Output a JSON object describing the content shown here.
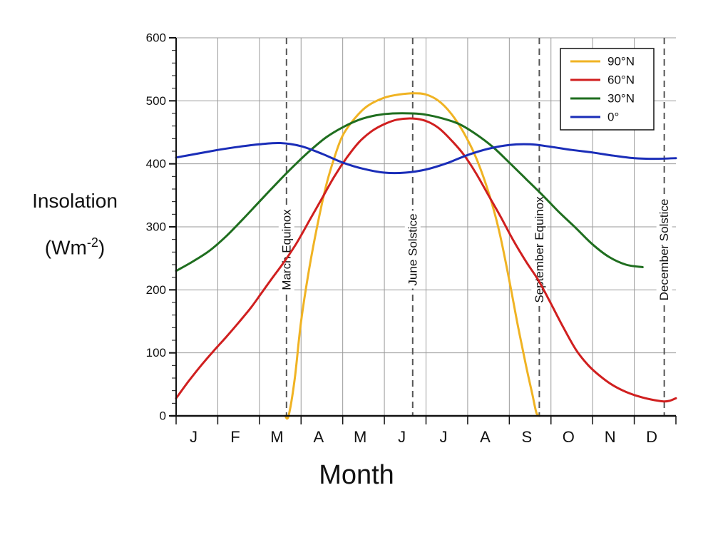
{
  "chart_data": {
    "type": "line",
    "ylabel_main": "Insolation",
    "ylabel_unit_prefix": "(Wm",
    "ylabel_unit_sup": "-2",
    "ylabel_unit_suffix": ")",
    "xlabel": "Month",
    "ylim": [
      0,
      600
    ],
    "yticks": [
      0,
      100,
      200,
      300,
      400,
      500,
      600
    ],
    "months": [
      "J",
      "F",
      "M",
      "A",
      "M",
      "J",
      "J",
      "A",
      "S",
      "O",
      "N",
      "D"
    ],
    "grid": true,
    "legend_position": "top-right",
    "events": [
      {
        "label": "March Equinox",
        "month": 2.65
      },
      {
        "label": "June Solstice",
        "month": 5.68
      },
      {
        "label": "September Equinox",
        "month": 8.72
      },
      {
        "label": "December Solstice",
        "month": 11.72
      }
    ],
    "series": [
      {
        "name": "90°N",
        "color": "#f0b323",
        "points": [
          [
            2.62,
            0
          ],
          [
            2.7,
            0
          ],
          [
            2.85,
            60
          ],
          [
            3.0,
            150
          ],
          [
            3.2,
            235
          ],
          [
            3.4,
            305
          ],
          [
            3.6,
            365
          ],
          [
            3.8,
            410
          ],
          [
            4.0,
            445
          ],
          [
            4.3,
            473
          ],
          [
            4.6,
            492
          ],
          [
            5.0,
            505
          ],
          [
            5.35,
            510
          ],
          [
            5.7,
            512
          ],
          [
            6.0,
            510
          ],
          [
            6.3,
            500
          ],
          [
            6.6,
            480
          ],
          [
            6.9,
            450
          ],
          [
            7.2,
            410
          ],
          [
            7.5,
            355
          ],
          [
            7.75,
            295
          ],
          [
            8.0,
            215
          ],
          [
            8.2,
            145
          ],
          [
            8.4,
            80
          ],
          [
            8.55,
            35
          ],
          [
            8.65,
            5
          ],
          [
            8.72,
            0
          ]
        ]
      },
      {
        "name": "60°N",
        "color": "#d01f1f",
        "points": [
          [
            0,
            28
          ],
          [
            0.3,
            55
          ],
          [
            0.6,
            80
          ],
          [
            0.9,
            103
          ],
          [
            1.2,
            125
          ],
          [
            1.5,
            148
          ],
          [
            1.8,
            172
          ],
          [
            2.05,
            195
          ],
          [
            2.3,
            218
          ],
          [
            2.6,
            245
          ],
          [
            2.9,
            275
          ],
          [
            3.2,
            310
          ],
          [
            3.5,
            345
          ],
          [
            3.8,
            380
          ],
          [
            4.1,
            410
          ],
          [
            4.4,
            435
          ],
          [
            4.7,
            452
          ],
          [
            5.0,
            463
          ],
          [
            5.3,
            470
          ],
          [
            5.68,
            472
          ],
          [
            6.0,
            468
          ],
          [
            6.3,
            457
          ],
          [
            6.6,
            438
          ],
          [
            6.9,
            415
          ],
          [
            7.2,
            385
          ],
          [
            7.5,
            350
          ],
          [
            7.8,
            315
          ],
          [
            8.1,
            278
          ],
          [
            8.4,
            245
          ],
          [
            8.7,
            215
          ],
          [
            9.0,
            178
          ],
          [
            9.3,
            140
          ],
          [
            9.6,
            105
          ],
          [
            9.9,
            80
          ],
          [
            10.2,
            62
          ],
          [
            10.5,
            48
          ],
          [
            10.8,
            38
          ],
          [
            11.1,
            31
          ],
          [
            11.4,
            26
          ],
          [
            11.7,
            23
          ],
          [
            11.85,
            24
          ],
          [
            12,
            28
          ]
        ]
      },
      {
        "name": "30°N",
        "color": "#1f6e1f",
        "points": [
          [
            0,
            230
          ],
          [
            0.4,
            245
          ],
          [
            0.8,
            262
          ],
          [
            1.2,
            285
          ],
          [
            1.6,
            312
          ],
          [
            2.0,
            340
          ],
          [
            2.4,
            368
          ],
          [
            2.8,
            395
          ],
          [
            3.2,
            420
          ],
          [
            3.6,
            442
          ],
          [
            4.0,
            458
          ],
          [
            4.4,
            470
          ],
          [
            4.8,
            477
          ],
          [
            5.2,
            480
          ],
          [
            5.68,
            480
          ],
          [
            6.0,
            478
          ],
          [
            6.4,
            472
          ],
          [
            6.8,
            463
          ],
          [
            7.2,
            447
          ],
          [
            7.6,
            427
          ],
          [
            8.0,
            402
          ],
          [
            8.4,
            376
          ],
          [
            8.8,
            350
          ],
          [
            9.2,
            323
          ],
          [
            9.6,
            298
          ],
          [
            10.0,
            272
          ],
          [
            10.4,
            252
          ],
          [
            10.8,
            240
          ],
          [
            11.2,
            236
          ]
        ]
      },
      {
        "name": "0°",
        "color": "#1a2db8",
        "points": [
          [
            0,
            410
          ],
          [
            0.5,
            416
          ],
          [
            1.0,
            422
          ],
          [
            1.5,
            427
          ],
          [
            2.0,
            431
          ],
          [
            2.5,
            433
          ],
          [
            3.0,
            428
          ],
          [
            3.5,
            416
          ],
          [
            4.0,
            402
          ],
          [
            4.5,
            392
          ],
          [
            5.0,
            386
          ],
          [
            5.5,
            386
          ],
          [
            6.0,
            391
          ],
          [
            6.5,
            401
          ],
          [
            7.0,
            414
          ],
          [
            7.5,
            424
          ],
          [
            8.0,
            430
          ],
          [
            8.5,
            431
          ],
          [
            9.0,
            427
          ],
          [
            9.5,
            422
          ],
          [
            10.0,
            418
          ],
          [
            10.5,
            413
          ],
          [
            11.0,
            409
          ],
          [
            11.5,
            408
          ],
          [
            12,
            409
          ]
        ]
      }
    ]
  }
}
